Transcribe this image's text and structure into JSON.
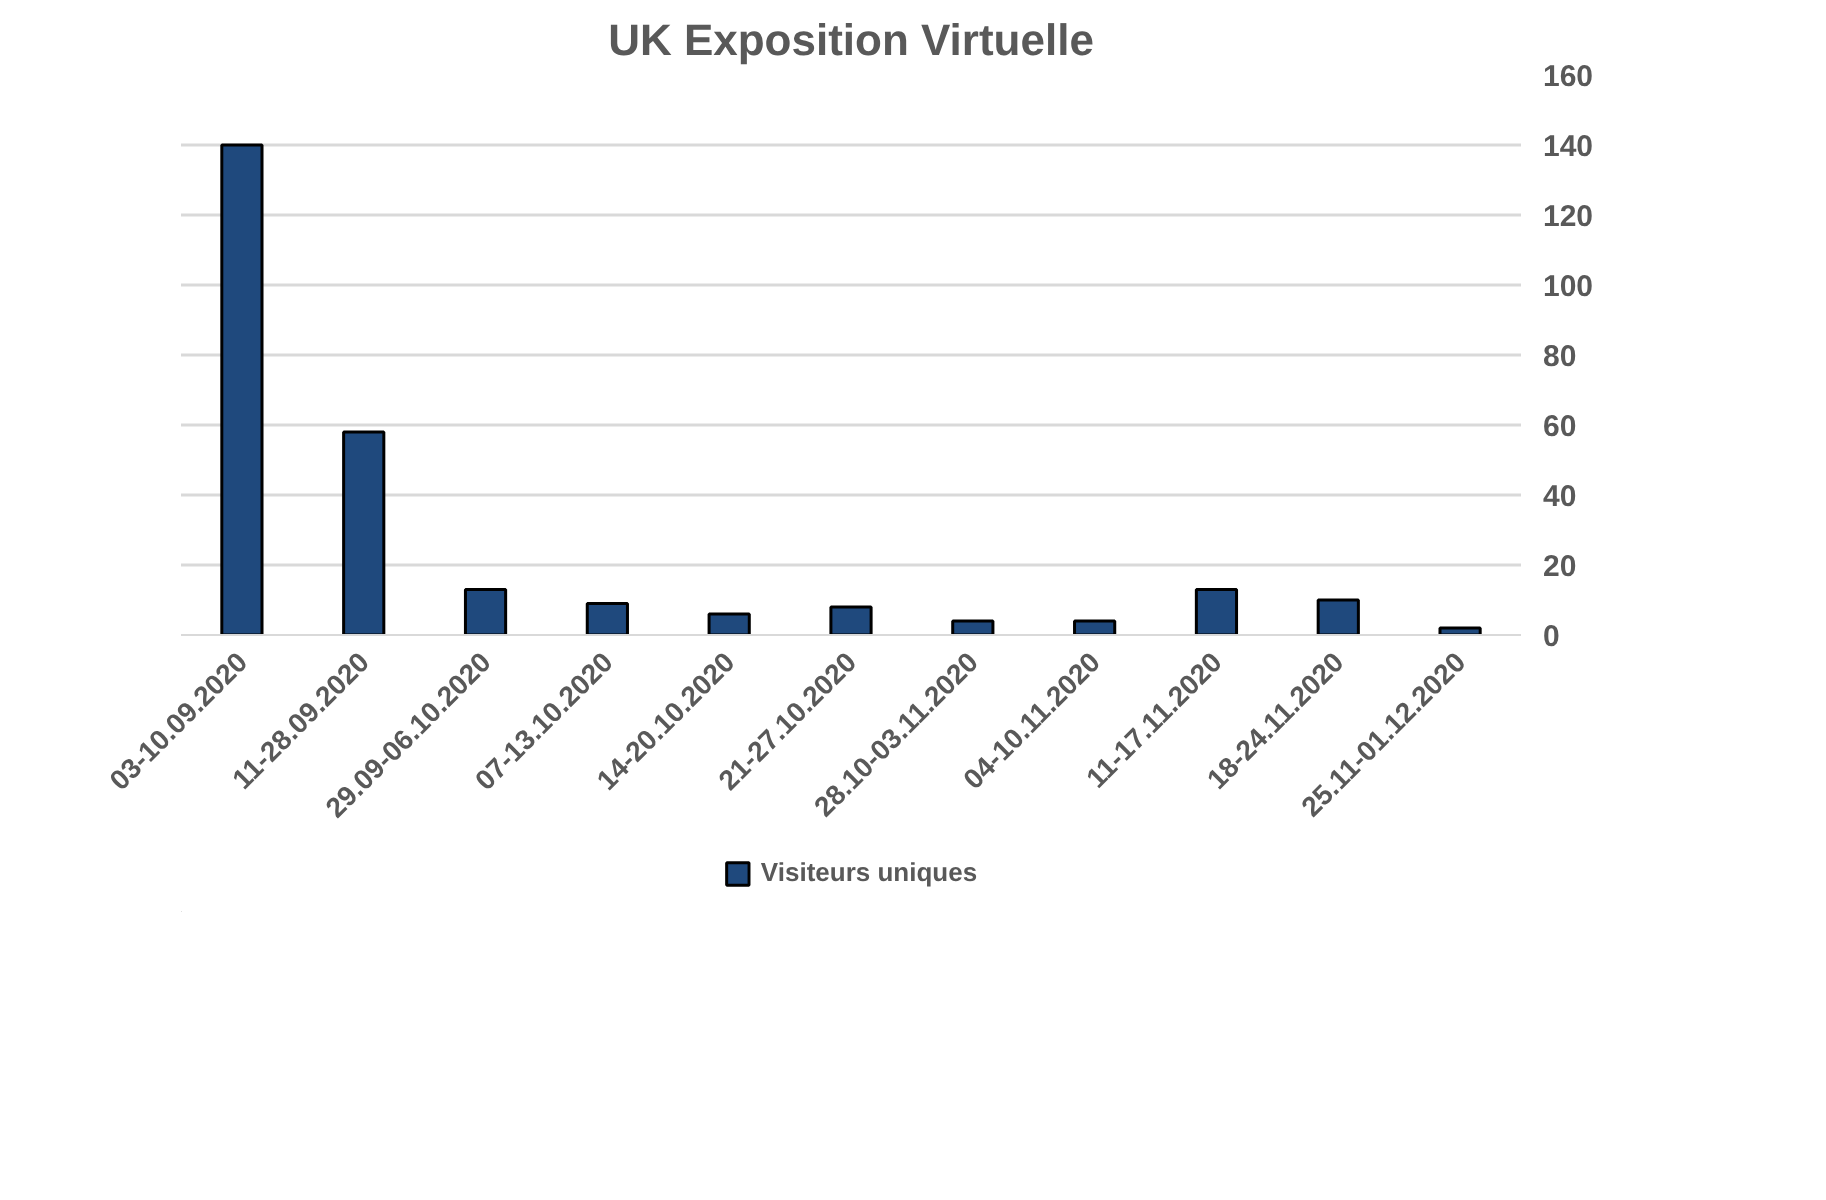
{
  "chart_data": {
    "type": "bar",
    "title": "UK Exposition Virtuelle",
    "categories": [
      "03-10.09.2020",
      "11-28.09.2020",
      "29.09-06.10.2020",
      "07-13.10.2020",
      "14-20.10.2020",
      "21-27.10.2020",
      "28.10-03.11.2020",
      "04-10.11.2020",
      "11-17.11.2020",
      "18-24.11.2020",
      "25.11-01.12.2020"
    ],
    "series": [
      {
        "name": "Visiteurs uniques",
        "color": "#1f497d",
        "values": [
          140,
          58,
          13,
          9,
          6,
          8,
          4,
          4,
          13,
          10,
          2
        ]
      }
    ],
    "ylim": [
      0,
      160
    ],
    "yticks": [
      0,
      20,
      40,
      60,
      80,
      100,
      120,
      140,
      160
    ],
    "grid": "y",
    "legend": "bottom"
  }
}
